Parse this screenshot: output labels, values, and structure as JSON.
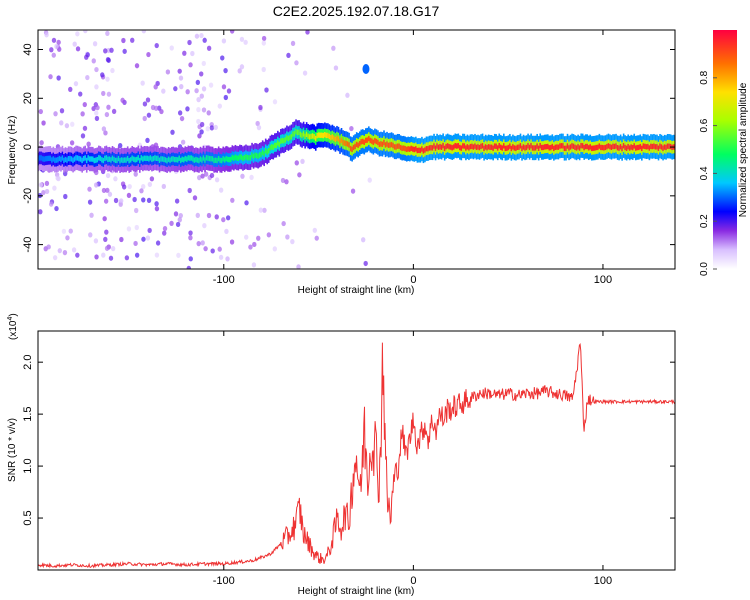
{
  "title": "C2E2.2025.192.07.18.G17",
  "colors": {
    "line": "#ee3333",
    "axis": "#000000"
  },
  "chart_data": [
    {
      "type": "heatmap",
      "xlabel": "Height of straight line (km)",
      "ylabel": "Frequency (Hz)",
      "xlim": [
        -198,
        138
      ],
      "ylim": [
        -50,
        48
      ],
      "xticks": [
        "-100",
        "0",
        "100"
      ],
      "xtick_values": [
        -100,
        0,
        100
      ],
      "yticks": [
        "40",
        "20",
        "0",
        "-20",
        "-40"
      ],
      "ytick_values": [
        40,
        20,
        0,
        -20,
        -40
      ],
      "colorbar": {
        "label": "Normalized spectral amplitude",
        "range": [
          0,
          1
        ],
        "ticks": [
          "0.0",
          "0.2",
          "0.4",
          "0.6",
          "0.8"
        ],
        "tick_values": [
          0.0,
          0.2,
          0.4,
          0.6,
          0.8
        ]
      },
      "ridge": {
        "x": [
          -198,
          -180,
          -160,
          -140,
          -120,
          -100,
          -90,
          -80,
          -72,
          -66,
          -62,
          -58,
          -52,
          -46,
          -40,
          -36,
          -32,
          -28,
          -24,
          -20,
          -14,
          -8,
          -4,
          0,
          6,
          10,
          20,
          40,
          60,
          80,
          100,
          120,
          138
        ],
        "y": [
          -5,
          -5,
          -5,
          -5,
          -5,
          -5,
          -4.5,
          -3,
          1,
          4,
          6,
          5,
          4,
          5,
          3,
          2,
          -1,
          2,
          3,
          2,
          1,
          0,
          -1,
          -1,
          -1,
          0,
          0,
          0,
          0,
          0,
          0,
          0,
          0
        ],
        "amplitude": [
          0.3,
          0.35,
          0.4,
          0.4,
          0.42,
          0.45,
          0.5,
          0.5,
          0.55,
          0.55,
          0.55,
          0.6,
          0.7,
          0.75,
          0.8,
          0.85,
          0.9,
          0.9,
          0.9,
          0.9,
          0.9,
          0.9,
          0.9,
          0.95,
          0.95,
          0.95,
          0.95,
          0.95,
          0.95,
          0.95,
          0.95,
          0.95,
          0.95
        ]
      },
      "feature": {
        "x": -25,
        "y": 32,
        "amplitude": 0.3
      }
    },
    {
      "type": "line",
      "xlabel": "Height of straight line (km)",
      "ylabel": "SNR (10 * v/v)",
      "y_multiplier": "(x10",
      "y_multiplier_exp": "4",
      "y_multiplier_close": ")",
      "xlim": [
        -198,
        138
      ],
      "ylim": [
        0,
        2.3
      ],
      "xticks": [
        "-100",
        "0",
        "100"
      ],
      "xtick_values": [
        -100,
        0,
        100
      ],
      "yticks": [
        "2.0",
        "1.5",
        "1.0",
        "0.5"
      ],
      "ytick_values": [
        2.0,
        1.5,
        1.0,
        0.5
      ],
      "series": [
        {
          "x": [
            -198,
            -190,
            -180,
            -170,
            -160,
            -150,
            -140,
            -130,
            -120,
            -110,
            -100,
            -95,
            -90,
            -85,
            -80,
            -75,
            -70,
            -65,
            -62,
            -60,
            -58,
            -55,
            -52,
            -50,
            -48,
            -46,
            -44,
            -42,
            -40,
            -38,
            -36,
            -34,
            -32,
            -30,
            -28,
            -26,
            -24,
            -22,
            -20,
            -18,
            -16,
            -14,
            -12,
            -10,
            -8,
            -6,
            -4,
            -2,
            0,
            2,
            4,
            6,
            8,
            10,
            12,
            14,
            16,
            18,
            20,
            25,
            30,
            35,
            40,
            45,
            50,
            55,
            60,
            65,
            70,
            75,
            80,
            84,
            86,
            88,
            90,
            92,
            95,
            100,
            110,
            120,
            130,
            138
          ],
          "y": [
            0.05,
            0.04,
            0.05,
            0.04,
            0.05,
            0.06,
            0.05,
            0.06,
            0.05,
            0.06,
            0.06,
            0.07,
            0.08,
            0.09,
            0.12,
            0.16,
            0.25,
            0.35,
            0.45,
            0.6,
            0.35,
            0.25,
            0.15,
            0.12,
            0.1,
            0.12,
            0.2,
            0.35,
            0.5,
            0.4,
            0.55,
            0.45,
            0.9,
            1.1,
            0.7,
            1.35,
            0.9,
            1.3,
            1.2,
            0.8,
            2.1,
            0.7,
            0.5,
            0.9,
            1.0,
            1.35,
            1.1,
            1.25,
            1.45,
            1.2,
            1.3,
            1.4,
            1.25,
            1.45,
            1.35,
            1.5,
            1.45,
            1.55,
            1.55,
            1.6,
            1.65,
            1.7,
            1.7,
            1.68,
            1.7,
            1.68,
            1.7,
            1.7,
            1.72,
            1.7,
            1.68,
            1.65,
            1.9,
            2.2,
            1.35,
            1.65,
            1.62,
            1.62,
            1.62,
            1.62,
            1.62,
            1.62
          ]
        }
      ]
    }
  ]
}
